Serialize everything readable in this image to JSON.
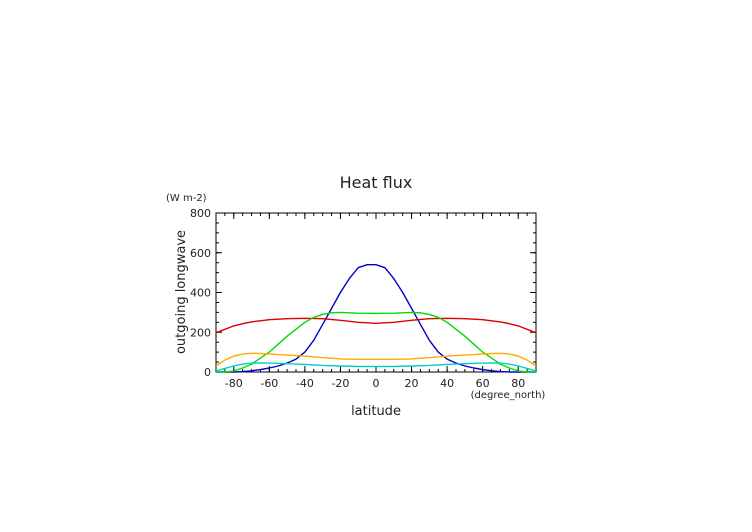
{
  "chart_data": {
    "type": "line",
    "title": "Heat flux",
    "ylabel": "outgoing longwave",
    "yunit": "(W m-2)",
    "xlabel": "latitude",
    "xunit": "(degree_north)",
    "xlim": [
      -90,
      90
    ],
    "ylim": [
      0,
      800
    ],
    "xticks": [
      -80,
      -60,
      -40,
      -20,
      0,
      20,
      40,
      60,
      80
    ],
    "yticks": [
      0,
      200,
      400,
      600,
      800
    ],
    "grid": false,
    "series": [
      {
        "color": "#0000cc",
        "x": [
          -90,
          -85,
          -80,
          -75,
          -70,
          -65,
          -60,
          -55,
          -50,
          -45,
          -40,
          -35,
          -30,
          -25,
          -20,
          -15,
          -10,
          -5,
          0,
          5,
          10,
          15,
          20,
          25,
          30,
          35,
          40,
          45,
          50,
          55,
          60,
          65,
          70,
          75,
          80,
          85,
          90
        ],
        "y": [
          0,
          0,
          0,
          2,
          6,
          12,
          20,
          30,
          45,
          65,
          100,
          160,
          240,
          320,
          400,
          470,
          525,
          540,
          540,
          525,
          470,
          400,
          320,
          240,
          160,
          100,
          65,
          45,
          30,
          20,
          12,
          6,
          2,
          0,
          0,
          0,
          0
        ]
      },
      {
        "color": "#dd0000",
        "x": [
          -90,
          -85,
          -80,
          -75,
          -70,
          -60,
          -50,
          -40,
          -30,
          -20,
          -10,
          0,
          10,
          20,
          30,
          40,
          50,
          60,
          70,
          75,
          80,
          85,
          90
        ],
        "y": [
          197,
          215,
          232,
          243,
          252,
          263,
          268,
          270,
          268,
          260,
          250,
          245,
          250,
          260,
          268,
          270,
          268,
          263,
          252,
          243,
          232,
          215,
          197
        ]
      },
      {
        "color": "#00dd00",
        "x": [
          -90,
          -85,
          -80,
          -75,
          -70,
          -65,
          -60,
          -55,
          -50,
          -45,
          -40,
          -35,
          -30,
          -25,
          -20,
          -10,
          0,
          10,
          20,
          25,
          30,
          35,
          40,
          45,
          50,
          55,
          60,
          65,
          70,
          75,
          80,
          85,
          90
        ],
        "y": [
          0,
          0,
          5,
          20,
          40,
          70,
          100,
          140,
          180,
          215,
          250,
          275,
          290,
          298,
          300,
          296,
          295,
          296,
          300,
          298,
          290,
          275,
          250,
          215,
          180,
          140,
          100,
          70,
          40,
          20,
          5,
          0,
          0
        ]
      },
      {
        "color": "#ffaa00",
        "x": [
          -90,
          -85,
          -80,
          -75,
          -70,
          -65,
          -60,
          -50,
          -40,
          -30,
          -20,
          -10,
          0,
          10,
          20,
          30,
          40,
          50,
          60,
          65,
          70,
          75,
          80,
          85,
          90
        ],
        "y": [
          30,
          60,
          80,
          90,
          94,
          93,
          90,
          85,
          80,
          72,
          66,
          64,
          64,
          64,
          66,
          72,
          80,
          85,
          90,
          93,
          94,
          90,
          80,
          60,
          30
        ]
      },
      {
        "color": "#00cccc",
        "x": [
          -90,
          -85,
          -80,
          -75,
          -70,
          -65,
          -60,
          -50,
          -40,
          -30,
          -20,
          -10,
          0,
          10,
          20,
          30,
          40,
          50,
          60,
          65,
          70,
          75,
          80,
          85,
          90
        ],
        "y": [
          5,
          18,
          30,
          40,
          45,
          46,
          45,
          42,
          38,
          33,
          30,
          28,
          28,
          28,
          30,
          33,
          38,
          42,
          45,
          46,
          45,
          40,
          30,
          18,
          5
        ]
      }
    ]
  }
}
